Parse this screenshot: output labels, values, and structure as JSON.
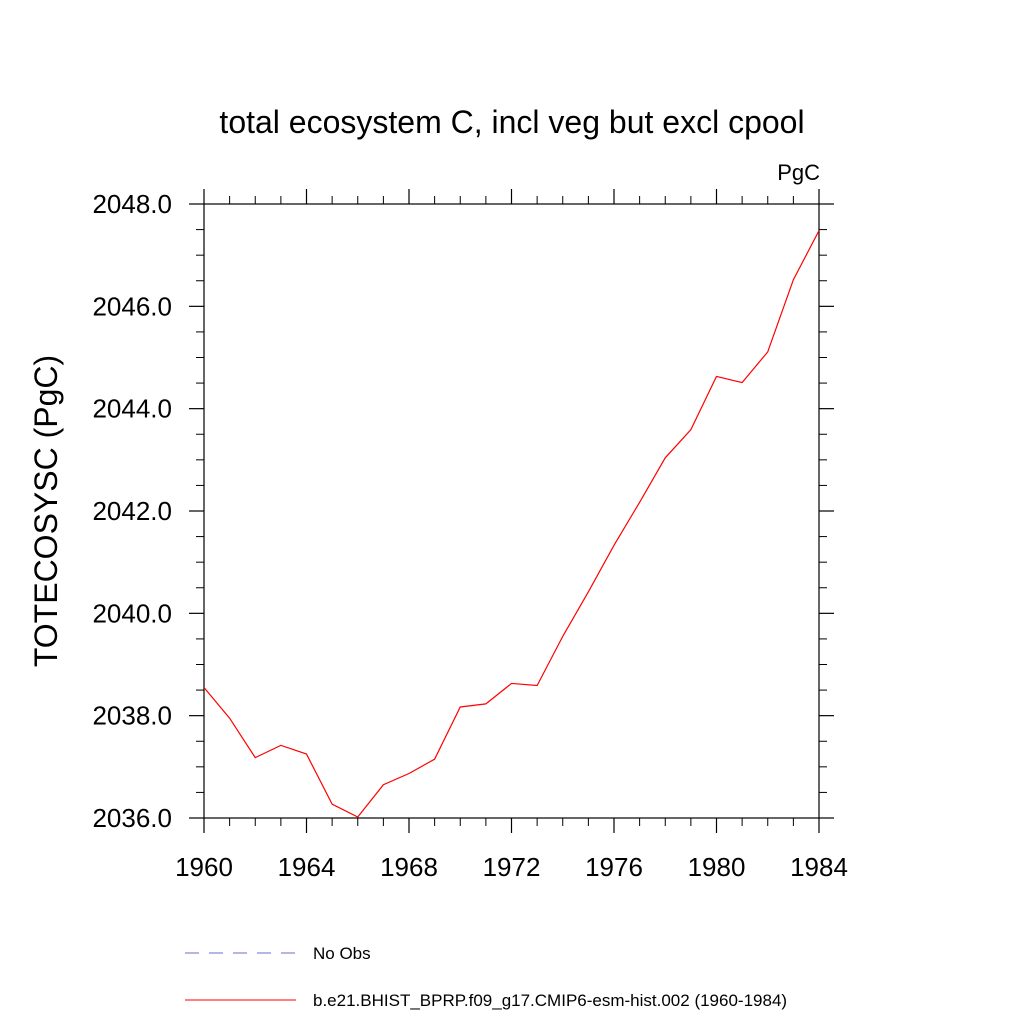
{
  "chart_data": {
    "type": "line",
    "title": "total ecosystem C, incl veg but excl cpool",
    "units_label": "PgC",
    "ylabel": "TOTECOSYSC  (PgC)",
    "xlabel": "",
    "xlim": [
      1960,
      1984
    ],
    "ylim": [
      2036.0,
      2048.0
    ],
    "x_ticks": [
      1960,
      1964,
      1968,
      1972,
      1976,
      1980,
      1984
    ],
    "x_tick_labels": [
      "1960",
      "1964",
      "1968",
      "1972",
      "1976",
      "1980",
      "1984"
    ],
    "y_ticks": [
      2036.0,
      2038.0,
      2040.0,
      2042.0,
      2044.0,
      2046.0,
      2048.0
    ],
    "y_tick_labels": [
      "2036.0",
      "2038.0",
      "2040.0",
      "2042.0",
      "2044.0",
      "2046.0",
      "2048.0"
    ],
    "x_minor_step": 1,
    "y_minor_step": 0.5,
    "grid": false,
    "legend_position": "bottom",
    "series": [
      {
        "name": "No Obs",
        "color": "#6b6bd6",
        "dash": "dashed",
        "x": [],
        "values": []
      },
      {
        "name": "b.e21.BHIST_BPRP.f09_g17.CMIP6-esm-hist.002 (1960-1984)",
        "color": "#ff0000",
        "dash": "solid",
        "x": [
          1960,
          1961,
          1962,
          1963,
          1964,
          1965,
          1966,
          1967,
          1968,
          1969,
          1970,
          1971,
          1972,
          1973,
          1974,
          1975,
          1976,
          1977,
          1978,
          1979,
          1980,
          1981,
          1982,
          1983,
          1984
        ],
        "values": [
          2038.55,
          2037.95,
          2037.18,
          2037.42,
          2037.25,
          2036.27,
          2036.02,
          2036.65,
          2036.87,
          2037.15,
          2038.17,
          2038.23,
          2038.63,
          2038.59,
          2039.55,
          2040.42,
          2041.33,
          2042.17,
          2043.04,
          2043.59,
          2044.63,
          2044.51,
          2045.11,
          2046.52,
          2047.48
        ]
      }
    ]
  }
}
